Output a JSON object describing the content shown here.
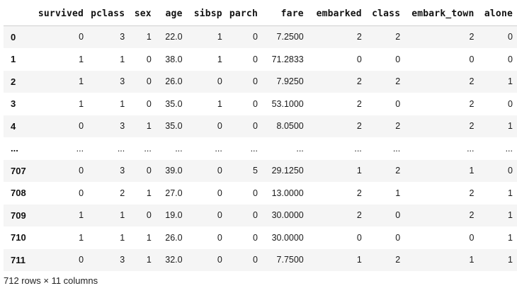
{
  "columns": [
    "",
    "survived",
    "pclass",
    "sex",
    "age",
    "sibsp",
    "parch",
    "fare",
    "embarked",
    "class",
    "embark_town",
    "alone"
  ],
  "rows": [
    {
      "index": "0",
      "cells": [
        "0",
        "3",
        "1",
        "22.0",
        "1",
        "0",
        "7.2500",
        "2",
        "2",
        "2",
        "0"
      ]
    },
    {
      "index": "1",
      "cells": [
        "1",
        "1",
        "0",
        "38.0",
        "1",
        "0",
        "71.2833",
        "0",
        "0",
        "0",
        "0"
      ]
    },
    {
      "index": "2",
      "cells": [
        "1",
        "3",
        "0",
        "26.0",
        "0",
        "0",
        "7.9250",
        "2",
        "2",
        "2",
        "1"
      ]
    },
    {
      "index": "3",
      "cells": [
        "1",
        "1",
        "0",
        "35.0",
        "1",
        "0",
        "53.1000",
        "2",
        "0",
        "2",
        "0"
      ]
    },
    {
      "index": "4",
      "cells": [
        "0",
        "3",
        "1",
        "35.0",
        "0",
        "0",
        "8.0500",
        "2",
        "2",
        "2",
        "1"
      ]
    },
    {
      "index": "...",
      "cells": [
        "...",
        "...",
        "...",
        "...",
        "...",
        "...",
        "...",
        "...",
        "...",
        "...",
        "..."
      ]
    },
    {
      "index": "707",
      "cells": [
        "0",
        "3",
        "0",
        "39.0",
        "0",
        "5",
        "29.1250",
        "1",
        "2",
        "1",
        "0"
      ]
    },
    {
      "index": "708",
      "cells": [
        "0",
        "2",
        "1",
        "27.0",
        "0",
        "0",
        "13.0000",
        "2",
        "1",
        "2",
        "1"
      ]
    },
    {
      "index": "709",
      "cells": [
        "1",
        "1",
        "0",
        "19.0",
        "0",
        "0",
        "30.0000",
        "2",
        "0",
        "2",
        "1"
      ]
    },
    {
      "index": "710",
      "cells": [
        "1",
        "1",
        "1",
        "26.0",
        "0",
        "0",
        "30.0000",
        "0",
        "0",
        "0",
        "1"
      ]
    },
    {
      "index": "711",
      "cells": [
        "0",
        "3",
        "1",
        "32.0",
        "0",
        "0",
        "7.7500",
        "1",
        "2",
        "1",
        "1"
      ]
    }
  ],
  "shape_text": "712 rows × 11 columns",
  "colors": {
    "row_odd": "#f5f5f5",
    "row_even": "#ffffff",
    "header_rule": "#d0d0d0"
  }
}
